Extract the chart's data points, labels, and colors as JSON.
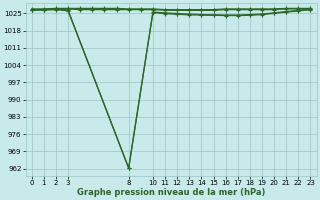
{
  "background_color": "#c8eaea",
  "grid_color": "#9ec4c4",
  "line_color": "#2d6629",
  "xlabel": "Graphe pression niveau de la mer (hPa)",
  "ylim": [
    959,
    1029
  ],
  "xlim": [
    -0.5,
    23.5
  ],
  "yticks": [
    962,
    969,
    976,
    983,
    990,
    997,
    1004,
    1011,
    1018,
    1025
  ],
  "xticks": [
    0,
    1,
    2,
    3,
    8,
    10,
    11,
    12,
    13,
    14,
    15,
    16,
    17,
    18,
    19,
    20,
    21,
    22,
    23
  ],
  "lines": [
    {
      "x": [
        0,
        1,
        2,
        3,
        4,
        5,
        6,
        7,
        8,
        9,
        10,
        11,
        12,
        13,
        14,
        15,
        16,
        17,
        18,
        19,
        20,
        21,
        22,
        23
      ],
      "y": [
        1026.8,
        1026.8,
        1027.0,
        1027.0,
        1027.0,
        1027.0,
        1027.0,
        1027.0,
        1026.8,
        1026.8,
        1026.8,
        1026.5,
        1026.5,
        1026.5,
        1026.5,
        1026.5,
        1026.8,
        1026.8,
        1026.8,
        1026.8,
        1026.8,
        1027.0,
        1027.0,
        1027.0
      ],
      "marker": true
    },
    {
      "x": [
        0,
        1,
        2,
        3,
        4,
        5,
        6,
        7,
        8,
        9,
        10,
        11,
        12,
        13,
        14,
        15,
        16,
        17,
        18,
        19,
        20,
        21,
        22,
        23
      ],
      "y": [
        1026.5,
        1026.5,
        1026.8,
        1026.8,
        1026.5,
        1026.5,
        1026.5,
        1026.5,
        1026.5,
        1026.5,
        1026.5,
        1026.3,
        1026.2,
        1026.2,
        1026.2,
        1026.2,
        1026.5,
        1026.5,
        1026.5,
        1026.5,
        1026.5,
        1026.8,
        1026.8,
        1026.8
      ],
      "marker": true
    },
    {
      "x": [
        0,
        1,
        2,
        3,
        8,
        10,
        11,
        12,
        13,
        14,
        15,
        16,
        17,
        18,
        19,
        20,
        21,
        22,
        23
      ],
      "y": [
        1026.5,
        1026.5,
        1026.8,
        1026.3,
        962.2,
        1025.3,
        1024.9,
        1024.6,
        1024.4,
        1024.3,
        1024.2,
        1024.1,
        1024.1,
        1024.2,
        1024.5,
        1025.0,
        1025.5,
        1026.0,
        1026.5
      ],
      "marker": true
    },
    {
      "x": [
        0,
        1,
        2,
        3,
        8,
        10,
        11,
        12,
        13,
        14,
        15,
        16,
        17,
        18,
        19,
        20,
        21,
        22,
        23
      ],
      "y": [
        1026.3,
        1026.3,
        1026.5,
        1026.0,
        962.2,
        1025.5,
        1025.2,
        1024.9,
        1024.7,
        1024.5,
        1024.4,
        1024.3,
        1024.3,
        1024.5,
        1024.7,
        1025.2,
        1025.7,
        1026.2,
        1026.6
      ],
      "marker": true
    }
  ],
  "marker_symbol": "+",
  "marker_size": 3.5,
  "line_width": 0.9,
  "tick_fontsize": 5,
  "xlabel_fontsize": 6,
  "xlabel_fontweight": "bold"
}
